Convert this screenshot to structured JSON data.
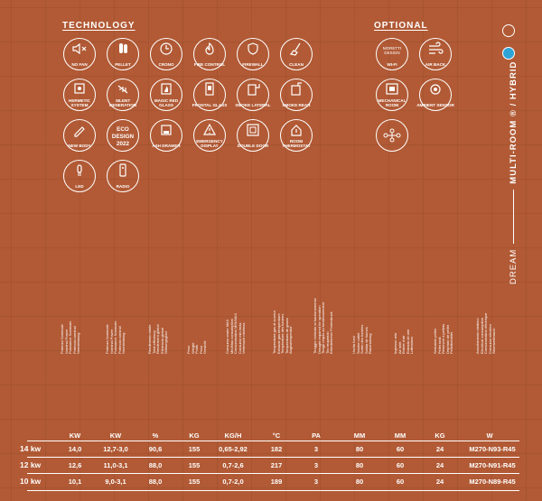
{
  "sections": {
    "technology": "TECHNOLOGY",
    "optional": "OPTIONAL"
  },
  "technology_icons": [
    {
      "id": "no-fan",
      "label": "NO FAN"
    },
    {
      "id": "pellet",
      "label": "PELLET"
    },
    {
      "id": "crono",
      "label": "CRONO"
    },
    {
      "id": "fire-control",
      "label": "FIRE CONTROL"
    },
    {
      "id": "firewall",
      "label": "FIREWALL"
    },
    {
      "id": "clean",
      "label": "CLEAN"
    },
    {
      "id": "hermetic-system",
      "label": "HERMETIC SYSTEM"
    },
    {
      "id": "silent-generation",
      "label": "SILENT GENERATION"
    },
    {
      "id": "magic-red-glass",
      "label": "MAGIC RED GLASS"
    },
    {
      "id": "frontal-glass",
      "label": "FRONTAL GLASS"
    },
    {
      "id": "smoke-lateral",
      "label": "SMOKE LATERAL"
    },
    {
      "id": "smoke-rear",
      "label": "SMOKE REAR"
    },
    {
      "id": "new-body",
      "label": "NEW BODY"
    },
    {
      "id": "eco-design",
      "label": "ECO DESIGN 2022"
    },
    {
      "id": "ash-drawer",
      "label": "ASH DRAWER"
    },
    {
      "id": "emergency-display",
      "label": "EMERGENCY DISPLAY"
    },
    {
      "id": "double-door",
      "label": "DOUBLE DOOR"
    },
    {
      "id": "room-thermostat",
      "label": "ROOM THERMOSTAT"
    },
    {
      "id": "led",
      "label": "LED"
    },
    {
      "id": "radio",
      "label": "RADIO"
    }
  ],
  "optional_icons": [
    {
      "id": "wi-fi",
      "label": "WI-FI",
      "brand": "MORETTI DESIGN"
    },
    {
      "id": "air-back",
      "label": "AIR BACK"
    },
    {
      "id": "mechanical-room",
      "label": "MECHANICAL ROOM"
    },
    {
      "id": "ambient-sensor",
      "label": "AMBIENT SENSOR"
    }
  ],
  "side_title": {
    "left": "DREAM",
    "right": "MULTI-ROOM ® / HYBRID"
  },
  "table": {
    "column_headers": [
      "Potenza Nominale\nNominal Power\nPuissance Nominale\nPotencia nominal\nNennleistung",
      "Potenza Nominale\nNominal Power\nPuissance Nominale\nPotencia nominal\nNennleistung",
      "Rendimento totale\nTotal efficiency\nRendement global\nEficiencia global\nWirkungsgrad",
      "Peso\nWeight\nPoids\nPeso\nGewicht",
      "Consumo orario MAX\nMin/Max consumption\nConsommation MIN/MAX\nConsumo min./máx\nVerbrauch min/max",
      "Temperatura gas di scarico\nExhaust gas temperature\nTempérature des fumées\nTemperatura de gases\nAbgastemperatur",
      "Tiraggio richiesto al funzionamento\nDraught required for operation\nTirage requis au fonctionnement\nTiro requerido\nErforderlicher Förderdruck",
      "Uscita fumi\nSmoke outlet\nSortie des fumées\nSalida de humos\nRauchabzug",
      "Ingresso aria\nAir inlet\nEntrée d'air\nEntrada de aire\nLufteinlass",
      "Serbatoio pellet\nPellet tank\nRéservoir à pellets\nDepósito de pellet\nPelletbehälter",
      "Assorbimento elettrico\nElectrical consumption\nConsommation électrique\nConsumo eléctrico\nStromverbrauch"
    ],
    "units": [
      "KW",
      "KW",
      "%",
      "KG",
      "KG/H",
      "°C",
      "PA",
      "MM",
      "MM",
      "KG",
      "W"
    ],
    "rows": [
      {
        "power": "14 kw",
        "values": [
          "14,0",
          "12,7-3,0",
          "90,6",
          "155",
          "0,65-2,92",
          "182",
          "3",
          "80",
          "60",
          "24",
          "M270-N93-R45"
        ]
      },
      {
        "power": "12 kw",
        "values": [
          "12,6",
          "11,0-3,1",
          "88,0",
          "155",
          "0,7-2,6",
          "217",
          "3",
          "80",
          "60",
          "24",
          "M270-N91-R45"
        ]
      },
      {
        "power": "10 kw",
        "values": [
          "10,1",
          "9,0-3,1",
          "88,0",
          "155",
          "0,7-2,0",
          "189",
          "3",
          "80",
          "60",
          "24",
          "M270-N89-R45"
        ]
      }
    ]
  },
  "colors": {
    "background": "#b15a35",
    "foreground": "#ffffff",
    "logo_blue": "#2ea3d6"
  }
}
